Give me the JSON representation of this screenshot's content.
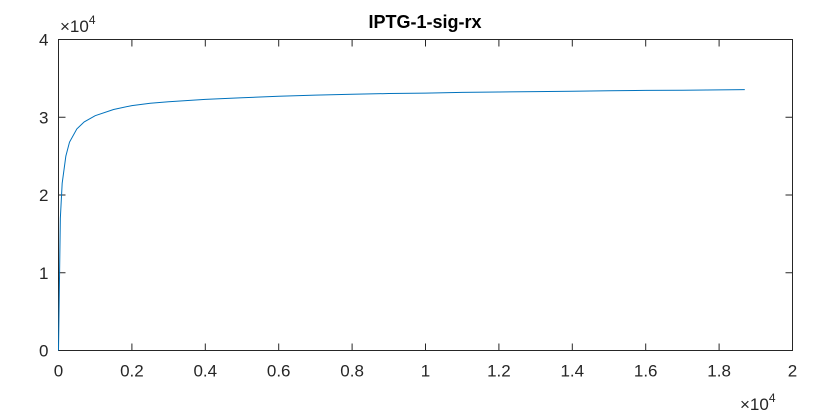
{
  "chart_data": {
    "type": "line",
    "title": "IPTG-1-sig-rx",
    "xlabel": "",
    "ylabel": "",
    "xlim": [
      0,
      20000
    ],
    "ylim": [
      0,
      40000
    ],
    "x_ticks": [
      0,
      2000,
      4000,
      6000,
      8000,
      10000,
      12000,
      14000,
      16000,
      18000,
      20000
    ],
    "x_tick_labels": [
      "0",
      "0.2",
      "0.4",
      "0.6",
      "0.8",
      "1",
      "1.2",
      "1.4",
      "1.6",
      "1.8",
      "2"
    ],
    "y_ticks": [
      0,
      10000,
      20000,
      30000,
      40000
    ],
    "y_tick_labels": [
      "0",
      "1",
      "2",
      "3",
      "4"
    ],
    "x_exponent_label": "×10",
    "x_exponent_power": "4",
    "y_exponent_label": "×10",
    "y_exponent_power": "4",
    "grid": false,
    "line_color": "#0072BD",
    "series": [
      {
        "x": [
          0,
          50,
          100,
          200,
          300,
          500,
          700,
          1000,
          1500,
          2000,
          2500,
          3000,
          4000,
          5000,
          6000,
          7000,
          8000,
          9000,
          10000,
          11000,
          12000,
          13000,
          14000,
          15000,
          16000,
          17000,
          18000,
          18700
        ],
        "y": [
          0,
          17000,
          21500,
          25000,
          26800,
          28500,
          29400,
          30200,
          31000,
          31500,
          31800,
          32000,
          32300,
          32500,
          32700,
          32850,
          32950,
          33050,
          33100,
          33200,
          33250,
          33300,
          33350,
          33400,
          33450,
          33480,
          33520,
          33560
        ]
      }
    ]
  }
}
